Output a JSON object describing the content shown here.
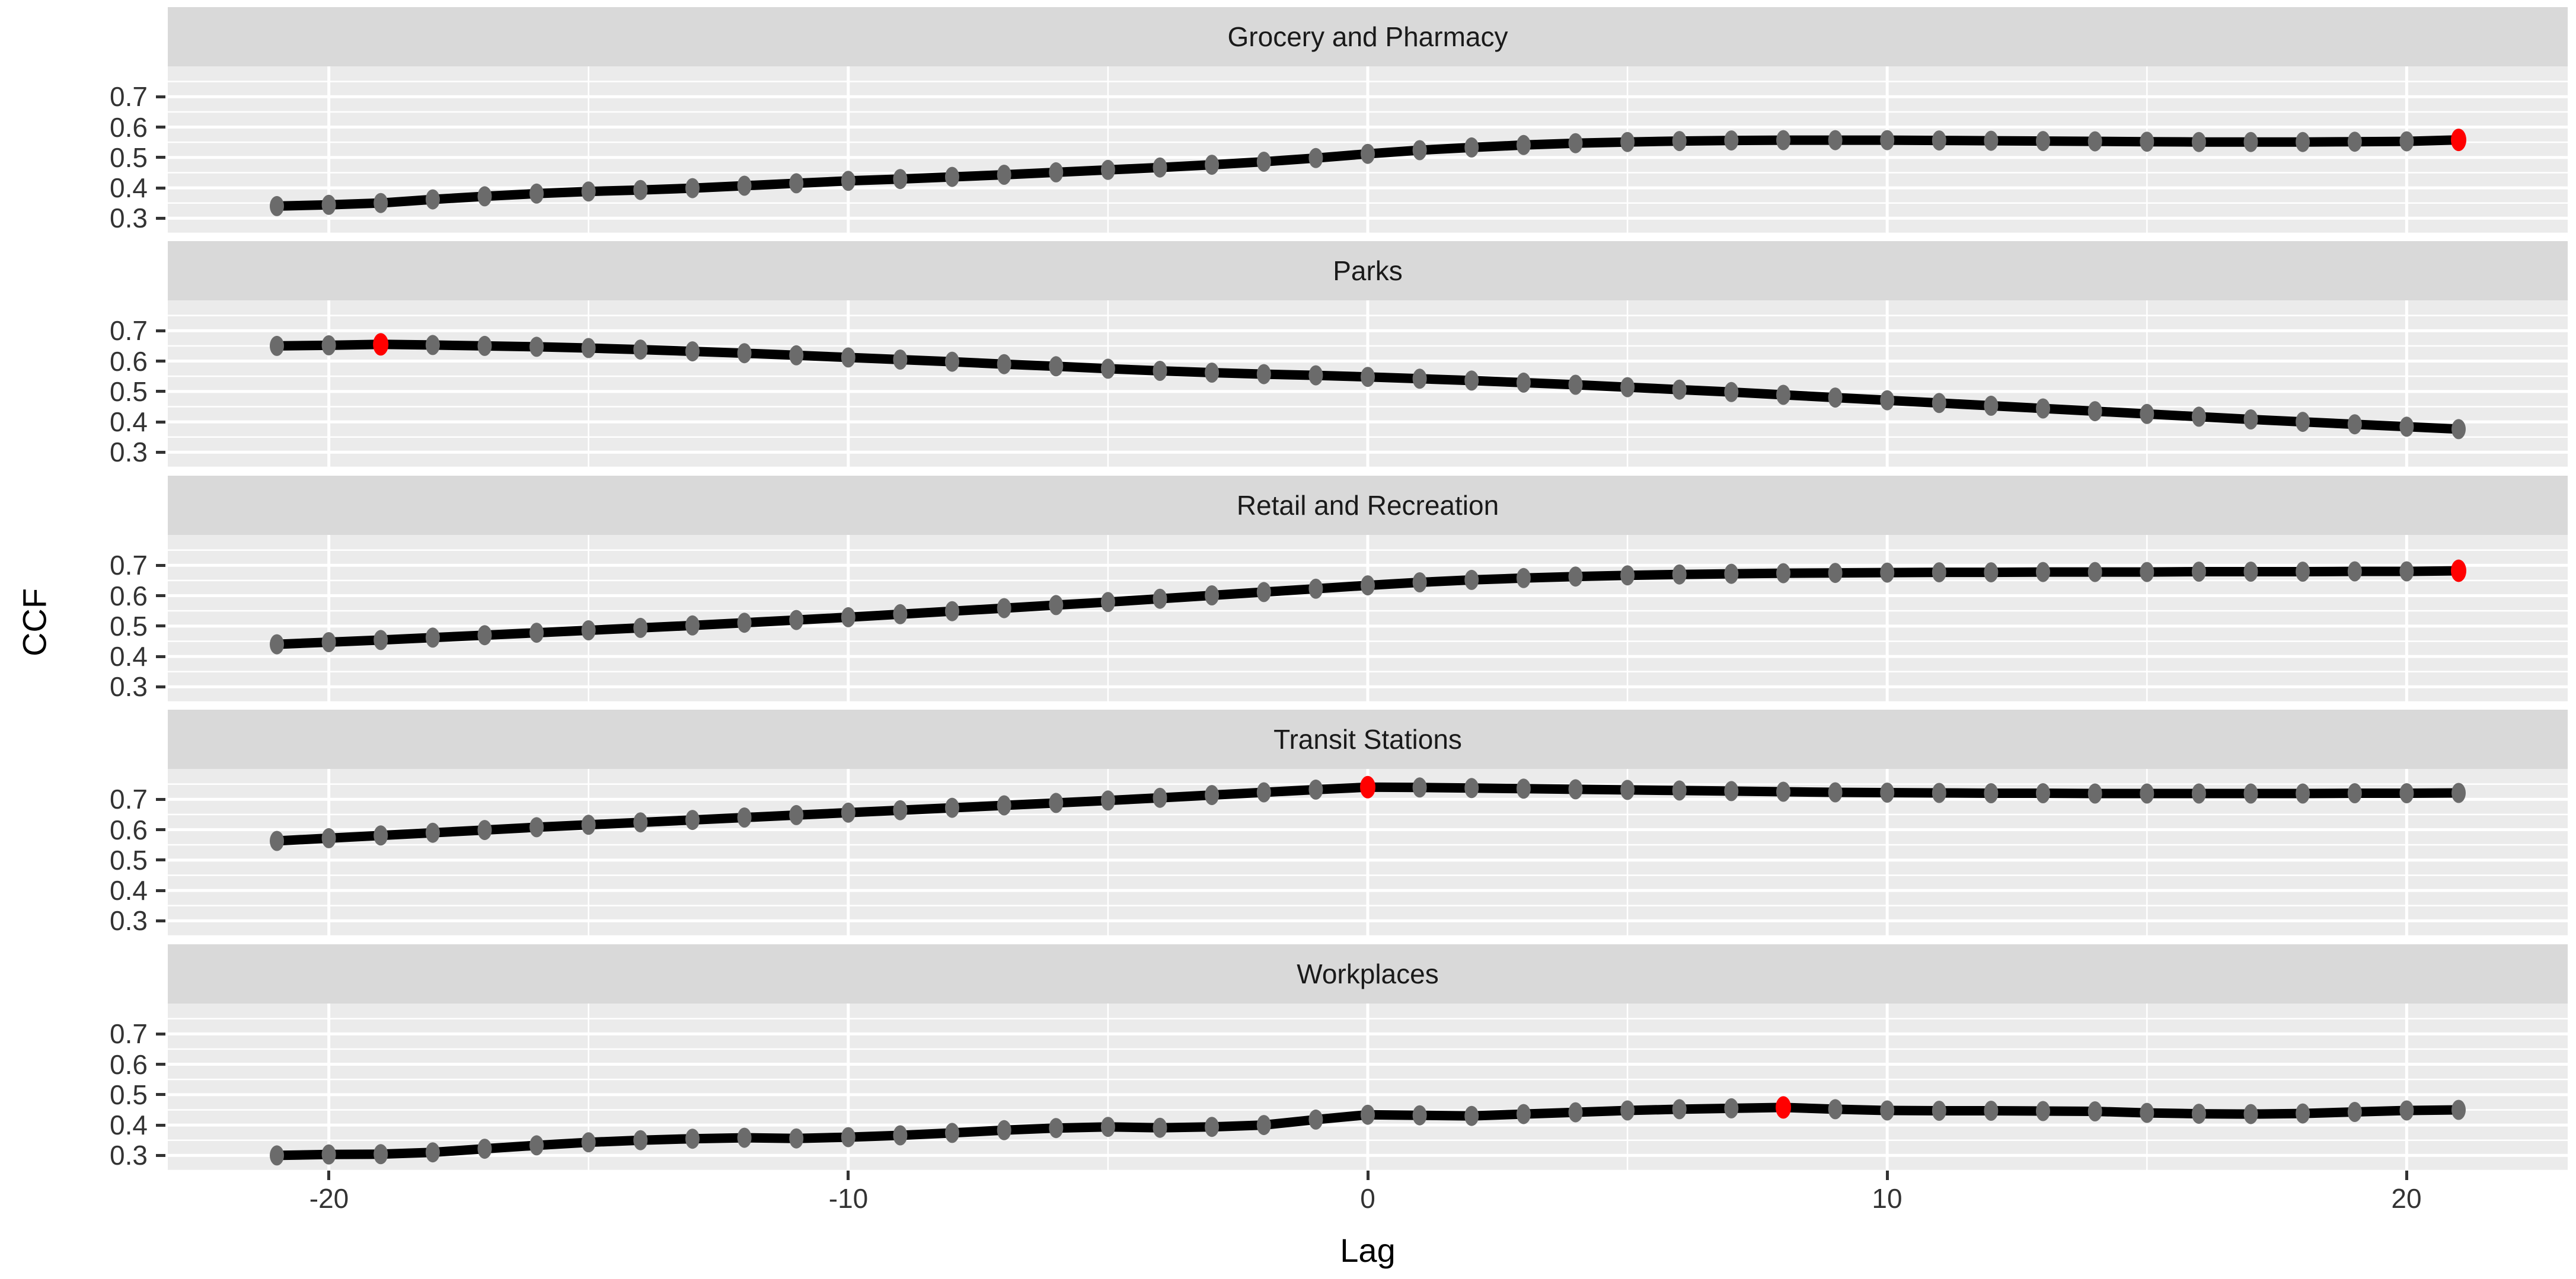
{
  "figure": {
    "background": "#FFFFFF",
    "panel_background": "#EBEBEB",
    "strip_background": "#D9D9D9",
    "grid_color": "#FFFFFF",
    "line_color": "#000000",
    "point_color": "#6B6B6B",
    "highlight_point_color": "#FF0000",
    "tick_label_color": "#333333"
  },
  "axes": {
    "x_title": "Lag",
    "y_title": "CCF",
    "x_ticks": [
      -20,
      -10,
      0,
      10,
      20
    ],
    "x_minor": [
      -15,
      -5,
      5,
      15
    ],
    "y_ticks": [
      0.7,
      0.6,
      0.5,
      0.4,
      0.3
    ],
    "y_tick_labels": [
      "0.7",
      "0.6",
      "0.5",
      "0.4",
      "0.3"
    ],
    "y_minor": [
      0.75,
      0.65,
      0.55,
      0.45,
      0.35,
      0.25
    ],
    "x_domain": [
      -23.1,
      23.1
    ],
    "y_domain": [
      0.25,
      0.8
    ],
    "grid": "on"
  },
  "chart_data": [
    {
      "type": "line",
      "title": "Grocery and Pharmacy",
      "xlabel": "Lag",
      "ylabel": "CCF",
      "x": [
        -21,
        -20,
        -19,
        -18,
        -17,
        -16,
        -15,
        -14,
        -13,
        -12,
        -11,
        -10,
        -9,
        -8,
        -7,
        -6,
        -5,
        -4,
        -3,
        -2,
        -1,
        0,
        1,
        2,
        3,
        4,
        5,
        6,
        7,
        8,
        9,
        10,
        11,
        12,
        13,
        14,
        15,
        16,
        17,
        18,
        19,
        20,
        21
      ],
      "values": [
        0.34,
        0.344,
        0.35,
        0.362,
        0.372,
        0.381,
        0.388,
        0.393,
        0.399,
        0.407,
        0.415,
        0.423,
        0.429,
        0.436,
        0.443,
        0.451,
        0.459,
        0.467,
        0.476,
        0.486,
        0.498,
        0.512,
        0.524,
        0.533,
        0.541,
        0.547,
        0.551,
        0.554,
        0.556,
        0.557,
        0.557,
        0.557,
        0.556,
        0.555,
        0.554,
        0.553,
        0.552,
        0.551,
        0.551,
        0.551,
        0.552,
        0.553,
        0.558
      ],
      "max_point_lag": 21,
      "max_point_value": 0.558
    },
    {
      "type": "line",
      "title": "Parks",
      "xlabel": "Lag",
      "ylabel": "CCF",
      "x": [
        -21,
        -20,
        -19,
        -18,
        -17,
        -16,
        -15,
        -14,
        -13,
        -12,
        -11,
        -10,
        -9,
        -8,
        -7,
        -6,
        -5,
        -4,
        -3,
        -2,
        -1,
        0,
        1,
        2,
        3,
        4,
        5,
        6,
        7,
        8,
        9,
        10,
        11,
        12,
        13,
        14,
        15,
        16,
        17,
        18,
        19,
        20,
        21
      ],
      "values": [
        0.65,
        0.652,
        0.655,
        0.653,
        0.65,
        0.647,
        0.643,
        0.638,
        0.632,
        0.626,
        0.619,
        0.612,
        0.605,
        0.598,
        0.59,
        0.583,
        0.575,
        0.568,
        0.562,
        0.557,
        0.553,
        0.548,
        0.542,
        0.536,
        0.529,
        0.522,
        0.514,
        0.506,
        0.498,
        0.489,
        0.48,
        0.471,
        0.462,
        0.453,
        0.444,
        0.435,
        0.426,
        0.417,
        0.408,
        0.4,
        0.392,
        0.384,
        0.376
      ],
      "max_point_lag": -19,
      "max_point_value": 0.655
    },
    {
      "type": "line",
      "title": "Retail and Recreation",
      "xlabel": "Lag",
      "ylabel": "CCF",
      "x": [
        -21,
        -20,
        -19,
        -18,
        -17,
        -16,
        -15,
        -14,
        -13,
        -12,
        -11,
        -10,
        -9,
        -8,
        -7,
        -6,
        -5,
        -4,
        -3,
        -2,
        -1,
        0,
        1,
        2,
        3,
        4,
        5,
        6,
        7,
        8,
        9,
        10,
        11,
        12,
        13,
        14,
        15,
        16,
        17,
        18,
        19,
        20,
        21
      ],
      "values": [
        0.44,
        0.447,
        0.454,
        0.462,
        0.47,
        0.478,
        0.486,
        0.494,
        0.502,
        0.511,
        0.52,
        0.529,
        0.539,
        0.549,
        0.559,
        0.569,
        0.579,
        0.59,
        0.601,
        0.612,
        0.623,
        0.634,
        0.644,
        0.652,
        0.658,
        0.663,
        0.667,
        0.67,
        0.672,
        0.674,
        0.675,
        0.676,
        0.677,
        0.677,
        0.678,
        0.678,
        0.678,
        0.679,
        0.679,
        0.679,
        0.68,
        0.68,
        0.682
      ],
      "max_point_lag": 21,
      "max_point_value": 0.682
    },
    {
      "type": "line",
      "title": "Transit Stations",
      "xlabel": "Lag",
      "ylabel": "CCF",
      "x": [
        -21,
        -20,
        -19,
        -18,
        -17,
        -16,
        -15,
        -14,
        -13,
        -12,
        -11,
        -10,
        -9,
        -8,
        -7,
        -6,
        -5,
        -4,
        -3,
        -2,
        -1,
        0,
        1,
        2,
        3,
        4,
        5,
        6,
        7,
        8,
        9,
        10,
        11,
        12,
        13,
        14,
        15,
        16,
        17,
        18,
        19,
        20,
        21
      ],
      "values": [
        0.563,
        0.572,
        0.581,
        0.59,
        0.599,
        0.608,
        0.616,
        0.624,
        0.632,
        0.64,
        0.648,
        0.656,
        0.664,
        0.672,
        0.68,
        0.688,
        0.696,
        0.705,
        0.714,
        0.723,
        0.732,
        0.74,
        0.739,
        0.737,
        0.735,
        0.733,
        0.731,
        0.729,
        0.727,
        0.725,
        0.723,
        0.722,
        0.721,
        0.72,
        0.72,
        0.719,
        0.719,
        0.719,
        0.719,
        0.719,
        0.72,
        0.72,
        0.721
      ],
      "max_point_lag": 0,
      "max_point_value": 0.74
    },
    {
      "type": "line",
      "title": "Workplaces",
      "xlabel": "Lag",
      "ylabel": "CCF",
      "x": [
        -21,
        -20,
        -19,
        -18,
        -17,
        -16,
        -15,
        -14,
        -13,
        -12,
        -11,
        -10,
        -9,
        -8,
        -7,
        -6,
        -5,
        -4,
        -3,
        -2,
        -1,
        0,
        1,
        2,
        3,
        4,
        5,
        6,
        7,
        8,
        9,
        10,
        11,
        12,
        13,
        14,
        15,
        16,
        17,
        18,
        19,
        20,
        21
      ],
      "values": [
        0.3,
        0.303,
        0.304,
        0.31,
        0.322,
        0.333,
        0.343,
        0.35,
        0.355,
        0.358,
        0.356,
        0.36,
        0.366,
        0.374,
        0.383,
        0.39,
        0.394,
        0.391,
        0.394,
        0.4,
        0.418,
        0.434,
        0.432,
        0.43,
        0.436,
        0.442,
        0.448,
        0.452,
        0.455,
        0.458,
        0.452,
        0.448,
        0.447,
        0.447,
        0.446,
        0.445,
        0.44,
        0.437,
        0.436,
        0.438,
        0.443,
        0.448,
        0.45
      ],
      "max_point_lag": 8,
      "max_point_value": 0.458
    }
  ]
}
